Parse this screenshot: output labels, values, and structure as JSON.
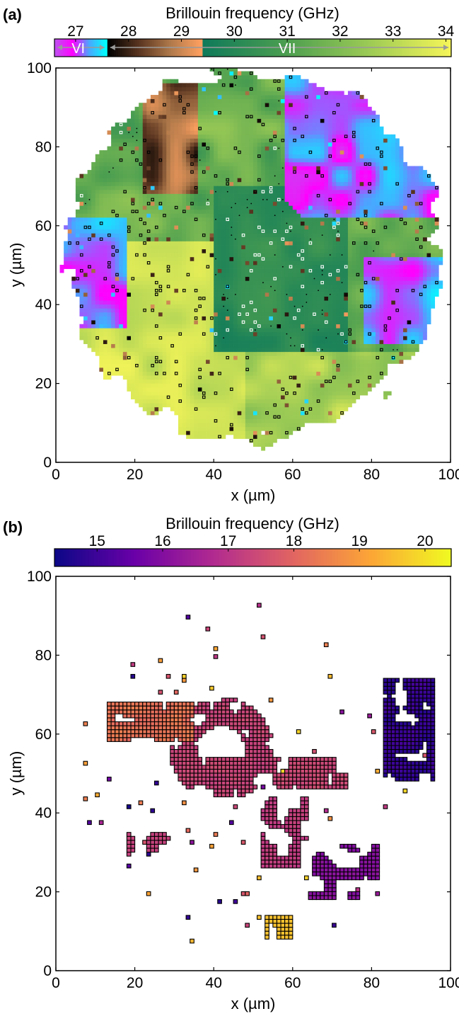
{
  "chart_data": [
    {
      "panel_label": "(a)",
      "type": "heatmap",
      "title": "",
      "xlabel": "x (µm)",
      "ylabel": "y (µm)",
      "xlim": [
        0,
        100
      ],
      "ylim": [
        0,
        100
      ],
      "xticks": [
        "0",
        "20",
        "40",
        "60",
        "80",
        "100"
      ],
      "yticks": [
        "0",
        "20",
        "40",
        "60",
        "80",
        "100"
      ],
      "grid": false,
      "colorbar": {
        "label": "Brillouin frequency (GHz)",
        "ticks": [
          "27",
          "28",
          "29",
          "30",
          "31",
          "32",
          "33",
          "34"
        ],
        "range": [
          26.6,
          34.1
        ],
        "segments": [
          {
            "from": 26.6,
            "to": 27.6,
            "colors": [
              "#c14ef0",
              "#ff00ff",
              "#48a8ff",
              "#00ffff"
            ]
          },
          {
            "from": 27.6,
            "to": 29.4,
            "colors": [
              "#000000",
              "#5a3520",
              "#b0794a",
              "#ffa060"
            ]
          },
          {
            "from": 29.4,
            "to": 34.1,
            "colors": [
              "#0f7a5a",
              "#4b9e50",
              "#9bca55",
              "#f5f558"
            ]
          }
        ],
        "phase_labels": [
          {
            "text": "VI",
            "span": [
              26.6,
              27.6
            ]
          },
          {
            "text": "VII",
            "span": [
              27.6,
              34.1
            ]
          }
        ]
      },
      "map_description": "Circular region of Brillouin frequency around x=50, y=52 with radius ~47 µm; phase VI (27–27.6 GHz, purple/magenta/cyan) upper right, ice VII high-frequency (yellow-green) lower left, dark green (~30 GHz) center, brown (~28 GHz) top-left patch"
    },
    {
      "panel_label": "(b)",
      "type": "heatmap",
      "title": "",
      "xlabel": "x (µm)",
      "ylabel": "y (µm)",
      "xlim": [
        0,
        100
      ],
      "ylim": [
        0,
        100
      ],
      "xticks": [
        "0",
        "20",
        "40",
        "60",
        "80",
        "100"
      ],
      "yticks": [
        "0",
        "20",
        "40",
        "60",
        "80",
        "100"
      ],
      "grid": false,
      "colorbar": {
        "label": "Brillouin frequency (GHz)",
        "ticks": [
          "15",
          "16",
          "17",
          "18",
          "19",
          "20"
        ],
        "range": [
          14.35,
          20.4
        ],
        "colors": [
          "#0d0887",
          "#6a00a8",
          "#b12a90",
          "#e16462",
          "#fca636",
          "#f0f921"
        ]
      },
      "map_description": "Scattered patches of a low-frequency phase: orange band upper left (~17.7–18.5 GHz), magenta-pink ring centered near x=40, y=55 (~17.3 GHz), dark blue-purple cluster on the right near x=88, y=60 (~14.7 GHz), scattered blocks toward the bottom"
    }
  ]
}
